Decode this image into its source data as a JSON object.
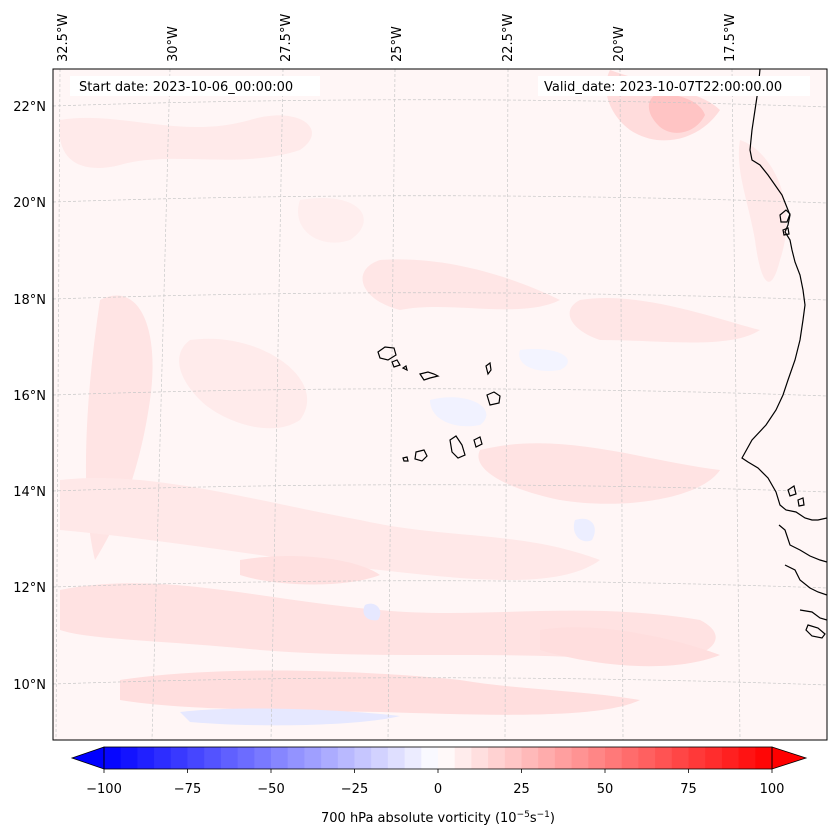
{
  "header": {
    "start_date": "Start date: 2023-10-06_00:00:00",
    "valid_date": "Valid_date: 2023-10-07T22:00:00.00"
  },
  "longitude_labels": [
    "32.5°W",
    "30°W",
    "27.5°W",
    "25°W",
    "22.5°W",
    "20°W",
    "17.5°W"
  ],
  "latitude_labels": [
    "22°N",
    "20°N",
    "18°N",
    "16°N",
    "14°N",
    "12°N",
    "10°N"
  ],
  "colorbar": {
    "title": "700 hPa absolute vorticity (10",
    "title_exp1": "−5",
    "title_mid": "s",
    "title_exp2": "−1",
    "title_end": ")",
    "tick_labels": [
      "−100",
      "−75",
      "−50",
      "−25",
      "0",
      "25",
      "50",
      "75",
      "100"
    ],
    "range": [
      -100,
      100
    ],
    "levels": 41,
    "extend": "both",
    "colormap": "bwr"
  },
  "colors": {
    "negative": "#0000ff",
    "neutral": "#ffffff",
    "positive": "#ff0000",
    "background_tint": "#fff5f5",
    "coast": "#000000",
    "grid": "#bbbbbb"
  }
}
